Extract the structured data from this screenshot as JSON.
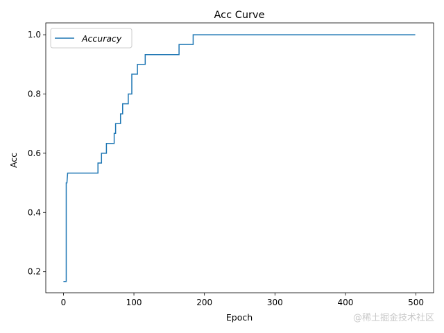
{
  "chart_data": {
    "type": "line",
    "title": "Acc Curve",
    "xlabel": "Epoch",
    "ylabel": "Acc",
    "xlim": [
      -25,
      525
    ],
    "ylim": [
      0.129,
      1.04
    ],
    "xticks": [
      0,
      100,
      200,
      300,
      400,
      500
    ],
    "yticks": [
      0.2,
      0.4,
      0.6,
      0.8,
      1.0
    ],
    "xtick_labels": [
      "0",
      "100",
      "200",
      "300",
      "400",
      "500"
    ],
    "ytick_labels": [
      "0.2",
      "0.4",
      "0.6",
      "0.8",
      "1.0"
    ],
    "grid": false,
    "legend_position": "upper-left",
    "series": [
      {
        "name": "Accuracy",
        "color": "#1f77b4",
        "x": [
          0,
          4,
          4,
          5,
          6,
          6,
          49,
          49,
          51,
          51,
          54,
          54,
          61,
          61,
          72,
          72,
          74,
          74,
          79,
          79,
          81,
          81,
          84,
          84,
          92,
          92,
          97,
          97,
          99,
          99,
          105,
          105,
          116,
          116,
          164,
          164,
          184,
          184,
          499
        ],
        "y": [
          0.167,
          0.167,
          0.5,
          0.5,
          0.533,
          0.533,
          0.533,
          0.567,
          0.567,
          0.567,
          0.567,
          0.6,
          0.6,
          0.633,
          0.633,
          0.667,
          0.667,
          0.7,
          0.7,
          0.7,
          0.7,
          0.733,
          0.733,
          0.767,
          0.767,
          0.8,
          0.8,
          0.867,
          0.867,
          0.867,
          0.867,
          0.9,
          0.9,
          0.933,
          0.933,
          0.967,
          0.967,
          1.0,
          1.0
        ]
      }
    ]
  },
  "watermark": "@稀土掘金技术社区"
}
